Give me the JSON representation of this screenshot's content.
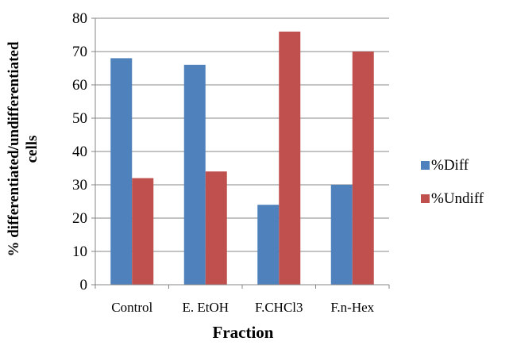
{
  "chart_data": {
    "type": "bar",
    "title": "",
    "xlabel": "Fraction",
    "ylabel": [
      "% differentiated/undifferentiated",
      "cells"
    ],
    "categories": [
      "Control",
      "E. EtOH",
      "F.CHCl3",
      "F.n-Hex"
    ],
    "series": [
      {
        "name": "%Diff",
        "values": [
          68,
          66,
          24,
          30
        ],
        "color": "#4f81bd"
      },
      {
        "name": "%Undiff",
        "values": [
          32,
          34,
          76,
          70
        ],
        "color": "#c0504d"
      }
    ],
    "ylim": [
      0,
      80
    ],
    "yticks": [
      0,
      10,
      20,
      30,
      40,
      50,
      60,
      70,
      80
    ],
    "grid": true,
    "legend": "right"
  }
}
